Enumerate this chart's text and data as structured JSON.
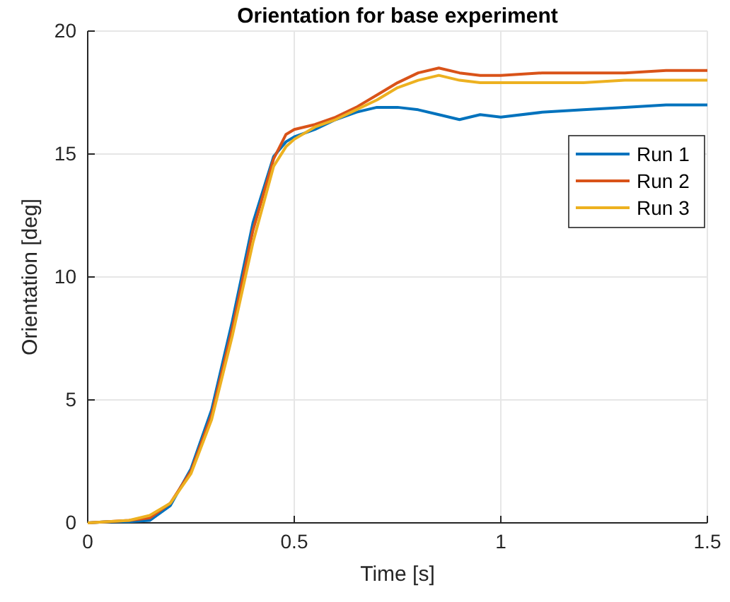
{
  "chart_data": {
    "type": "line",
    "title": "Orientation for base experiment",
    "xlabel": "Time [s]",
    "ylabel": "Orientation [deg]",
    "xlim": [
      0,
      1.5
    ],
    "ylim": [
      0,
      20
    ],
    "xticks": [
      0,
      0.5,
      1,
      1.5
    ],
    "yticks": [
      0,
      5,
      10,
      15,
      20
    ],
    "grid": true,
    "legend": "top right",
    "line_style": "solid",
    "marker": "none",
    "x": [
      0,
      0.05,
      0.1,
      0.15,
      0.2,
      0.25,
      0.3,
      0.35,
      0.4,
      0.45,
      0.48,
      0.5,
      0.55,
      0.6,
      0.65,
      0.7,
      0.75,
      0.8,
      0.85,
      0.9,
      0.95,
      1.0,
      1.1,
      1.2,
      1.3,
      1.4,
      1.5
    ],
    "series": [
      {
        "name": "Run 1",
        "color": "#0072bd",
        "values": [
          0,
          0.05,
          0.05,
          0.1,
          0.7,
          2.2,
          4.6,
          8.2,
          12.2,
          14.9,
          15.5,
          15.7,
          16.0,
          16.4,
          16.7,
          16.9,
          16.9,
          16.8,
          16.6,
          16.4,
          16.6,
          16.5,
          16.7,
          16.8,
          16.9,
          17.0,
          17.0
        ]
      },
      {
        "name": "Run 2",
        "color": "#d95319",
        "values": [
          0,
          0.05,
          0.1,
          0.2,
          0.8,
          2.1,
          4.4,
          7.9,
          11.9,
          14.8,
          15.8,
          16.0,
          16.2,
          16.5,
          16.9,
          17.4,
          17.9,
          18.3,
          18.5,
          18.3,
          18.2,
          18.2,
          18.3,
          18.3,
          18.3,
          18.4,
          18.4
        ]
      },
      {
        "name": "Run 3",
        "color": "#edb120",
        "values": [
          0,
          0.05,
          0.1,
          0.3,
          0.8,
          2.0,
          4.2,
          7.6,
          11.4,
          14.5,
          15.3,
          15.6,
          16.1,
          16.4,
          16.8,
          17.2,
          17.7,
          18.0,
          18.2,
          18.0,
          17.9,
          17.9,
          17.9,
          17.9,
          18.0,
          18.0,
          18.0
        ]
      }
    ]
  }
}
